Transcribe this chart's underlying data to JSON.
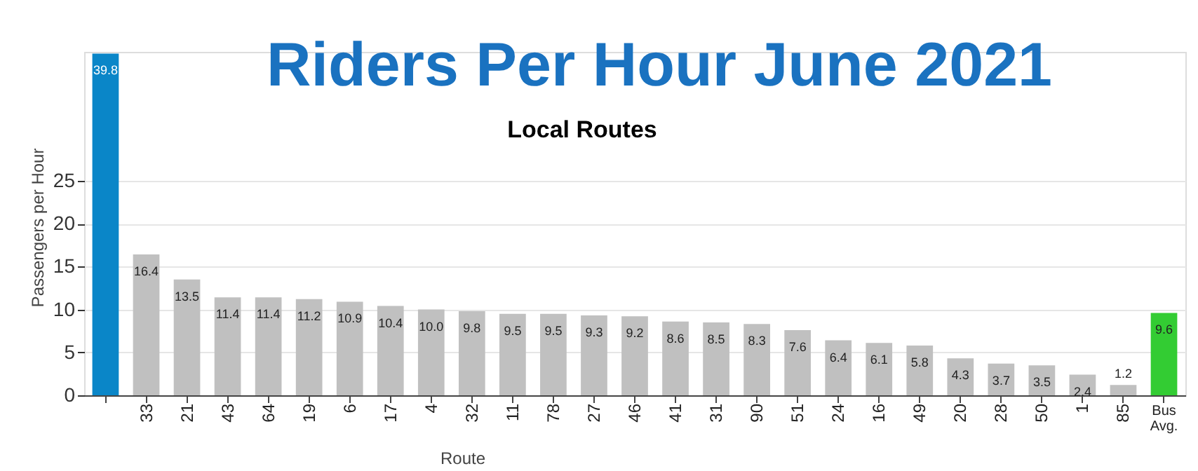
{
  "chart_data": {
    "type": "bar",
    "title": "Riders Per Hour June 2021",
    "subtitle": "Local Routes",
    "xlabel": "Route",
    "ylabel": "Passengers per Hour",
    "categories": [
      null,
      "33",
      "21",
      "43",
      "64",
      "19",
      "6",
      "17",
      "4",
      "32",
      "11",
      "78",
      "27",
      "46",
      "41",
      "31",
      "90",
      "51",
      "24",
      "16",
      "49",
      "20",
      "28",
      "50",
      "1",
      "85",
      "Bus Avg."
    ],
    "values": [
      39.8,
      16.4,
      13.5,
      11.4,
      11.4,
      11.2,
      10.9,
      10.4,
      10.0,
      9.8,
      9.5,
      9.5,
      9.3,
      9.2,
      8.6,
      8.5,
      8.3,
      7.6,
      6.4,
      6.1,
      5.8,
      4.3,
      3.7,
      3.5,
      2.4,
      1.2,
      9.6
    ],
    "colors": [
      "#0a86c8",
      "#c0c0c0",
      "#c0c0c0",
      "#c0c0c0",
      "#c0c0c0",
      "#c0c0c0",
      "#c0c0c0",
      "#c0c0c0",
      "#c0c0c0",
      "#c0c0c0",
      "#c0c0c0",
      "#c0c0c0",
      "#c0c0c0",
      "#c0c0c0",
      "#c0c0c0",
      "#c0c0c0",
      "#c0c0c0",
      "#c0c0c0",
      "#c0c0c0",
      "#c0c0c0",
      "#c0c0c0",
      "#c0c0c0",
      "#c0c0c0",
      "#c0c0c0",
      "#c0c0c0",
      "#c0c0c0",
      "#33cc33"
    ],
    "value_labels": [
      "39.8",
      "16.4",
      "13.5",
      "11.4",
      "11.4",
      "11.2",
      "10.9",
      "10.4",
      "10.0",
      "9.8",
      "9.5",
      "9.5",
      "9.3",
      "9.2",
      "8.6",
      "8.5",
      "8.3",
      "7.6",
      "6.4",
      "6.1",
      "5.8",
      "4.3",
      "3.7",
      "3.5",
      "2.4",
      "1.2",
      "9.6"
    ],
    "ylim": [
      0,
      40
    ],
    "yticks": [
      0,
      5,
      10,
      15,
      20,
      25
    ],
    "grid": "y"
  }
}
